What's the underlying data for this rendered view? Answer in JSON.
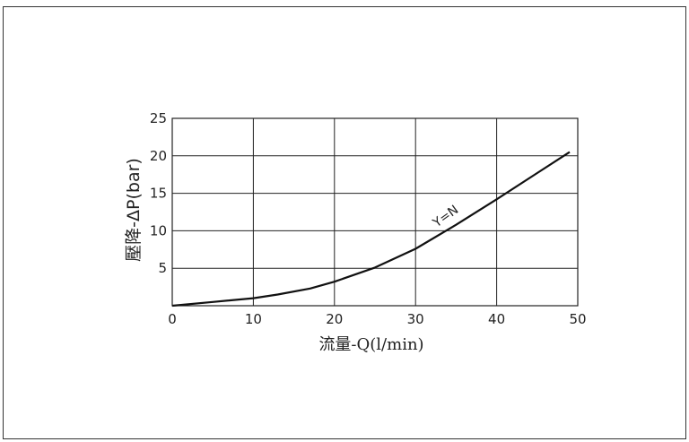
{
  "chart_data": {
    "type": "line",
    "title": "",
    "xlabel": "流量-Q(l/min)",
    "ylabel": "壓降-ΔP(bar)",
    "xlim": [
      0,
      50
    ],
    "ylim": [
      0,
      25
    ],
    "xticks": [
      0,
      10,
      20,
      30,
      40,
      50
    ],
    "yticks": [
      5,
      10,
      15,
      20,
      25
    ],
    "grid": true,
    "series": [
      {
        "name": "Y=N",
        "x": [
          0,
          5,
          10,
          13,
          17,
          20,
          25,
          30,
          35,
          40,
          45,
          49
        ],
        "y": [
          0,
          0.5,
          1.0,
          1.5,
          2.3,
          3.2,
          5.1,
          7.6,
          10.8,
          14.2,
          17.7,
          20.5
        ]
      }
    ],
    "annotations": [
      {
        "text": "Y=N",
        "x": 34,
        "y": 11.5
      }
    ],
    "colors": {
      "line": "#111111",
      "grid": "#222222",
      "text": "#222222"
    }
  }
}
